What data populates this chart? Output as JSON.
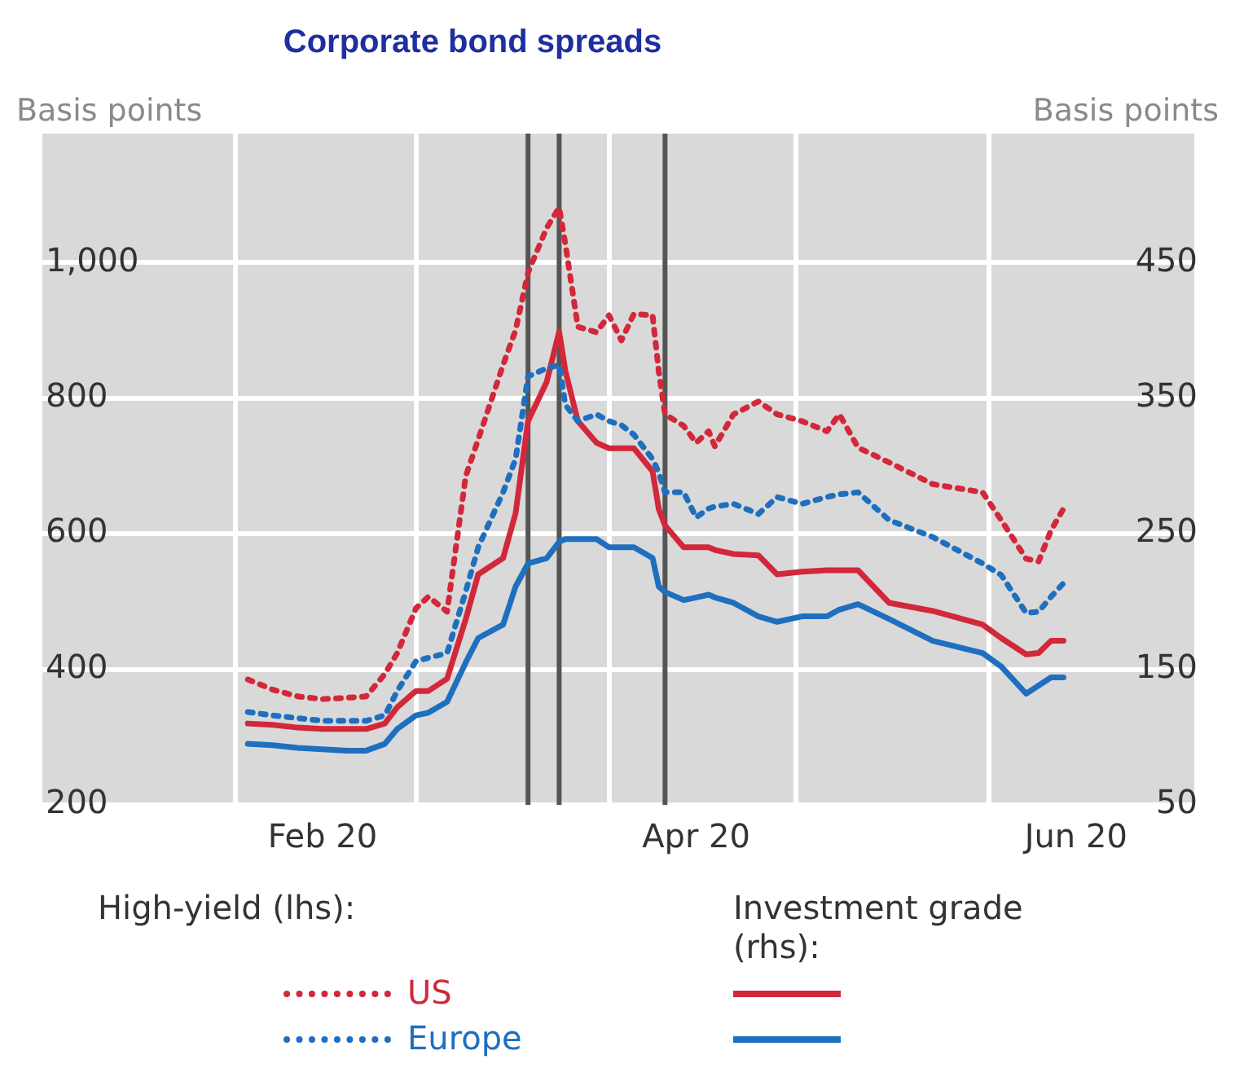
{
  "chart_data": {
    "type": "line",
    "title": "Corporate bond spreads",
    "ylabel": "Basis points",
    "y2label": "Basis points",
    "annotations": [
      "High-yield (lhs):",
      "Investment grade (rhs):"
    ],
    "x": [
      "2020-02-03",
      "2020-02-07",
      "2020-02-11",
      "2020-02-15",
      "2020-02-19",
      "2020-02-22",
      "2020-02-25",
      "2020-02-27",
      "2020-03-01",
      "2020-03-03",
      "2020-03-06",
      "2020-03-09",
      "2020-03-11",
      "2020-03-15",
      "2020-03-17",
      "2020-03-19",
      "2020-03-22",
      "2020-03-24",
      "2020-03-25",
      "2020-03-27",
      "2020-03-30",
      "2020-04-01",
      "2020-04-03",
      "2020-04-05",
      "2020-04-08",
      "2020-04-09",
      "2020-04-10",
      "2020-04-13",
      "2020-04-15",
      "2020-04-17",
      "2020-04-18",
      "2020-04-21",
      "2020-04-25",
      "2020-04-28",
      "2020-05-02",
      "2020-05-06",
      "2020-05-08",
      "2020-05-11",
      "2020-05-16",
      "2020-05-23",
      "2020-05-31",
      "2020-06-03",
      "2020-06-07",
      "2020-06-09",
      "2020-06-11",
      "2020-06-13"
    ],
    "series": [
      {
        "name": "US",
        "color": "#d2283a",
        "line_style": "dotted",
        "values": [
          385,
          370,
          360,
          356,
          358,
          360,
          393,
          424,
          490,
          507,
          485,
          685,
          739,
          849,
          900,
          985,
          1051,
          1081,
          1027,
          905,
          897,
          922,
          885,
          924,
          922,
          839,
          776,
          759,
          734,
          751,
          729,
          776,
          795,
          776,
          766,
          751,
          776,
          727,
          705,
          673,
          661,
          620,
          563,
          559,
          605,
          637
        ]
      },
      {
        "name": "Europe",
        "color": "#1f6fbf",
        "line_style": "dotted",
        "values": [
          337,
          332,
          328,
          324,
          324,
          324,
          332,
          368,
          412,
          417,
          424,
          515,
          580,
          661,
          710,
          832,
          844,
          849,
          790,
          766,
          776,
          766,
          760,
          746,
          710,
          690,
          661,
          661,
          624,
          637,
          640,
          644,
          629,
          654,
          644,
          654,
          658,
          661,
          620,
          595,
          556,
          539,
          483,
          485,
          507,
          527
        ]
      },
      {
        "color": "#d2283a",
        "line_style": "solid",
        "axis": "y2",
        "values": [
          110,
          109,
          107,
          106,
          106,
          106,
          110,
          122,
          134,
          134,
          143,
          187,
          220,
          232,
          265,
          333,
          362,
          399,
          370,
          333,
          317,
          313,
          313,
          313,
          296,
          268,
          256,
          240,
          240,
          240,
          238,
          235,
          234,
          220,
          222,
          223,
          223,
          223,
          199,
          193,
          183,
          173,
          161,
          162,
          171,
          171
        ]
      },
      {
        "color": "#1f6fbf",
        "line_style": "solid",
        "axis": "y2",
        "values": [
          95,
          94,
          92,
          91,
          90,
          90,
          95,
          106,
          116,
          118,
          126,
          155,
          173,
          183,
          211,
          228,
          232,
          244,
          246,
          246,
          246,
          240,
          240,
          240,
          232,
          211,
          207,
          201,
          203,
          205,
          203,
          199,
          189,
          185,
          189,
          189,
          194,
          198,
          187,
          171,
          162,
          152,
          132,
          138,
          144,
          144
        ]
      }
    ],
    "xlim": [
      "2020-01-01",
      "2020-07-04"
    ],
    "xticks": [
      {
        "value": "2020-02-01",
        "label": null
      },
      {
        "value": "2020-02-15",
        "label": "Feb 20"
      },
      {
        "value": "2020-03-01",
        "label": null
      },
      {
        "value": "2020-04-01",
        "label": null
      },
      {
        "value": "2020-04-15",
        "label": "Apr 20"
      },
      {
        "value": "2020-05-01",
        "label": null
      },
      {
        "value": "2020-06-01",
        "label": null
      },
      {
        "value": "2020-06-15",
        "label": "Jun 20"
      }
    ],
    "ylim": [
      200,
      1190
    ],
    "yticks": [
      200,
      400,
      600,
      800,
      {
        "value": 1000,
        "label": "1,000"
      }
    ],
    "y2lim": [
      50,
      545
    ],
    "y2ticks": [
      50,
      150,
      250,
      350,
      450
    ],
    "ref_lines": [
      {
        "axis": "x",
        "value": "2020-03-19",
        "color": "#555555"
      },
      {
        "axis": "x",
        "value": "2020-03-24",
        "color": "#555555"
      },
      {
        "axis": "x",
        "value": "2020-04-10",
        "color": "#555555"
      }
    ],
    "grid": true,
    "legend": "bottom",
    "marker": "none"
  }
}
